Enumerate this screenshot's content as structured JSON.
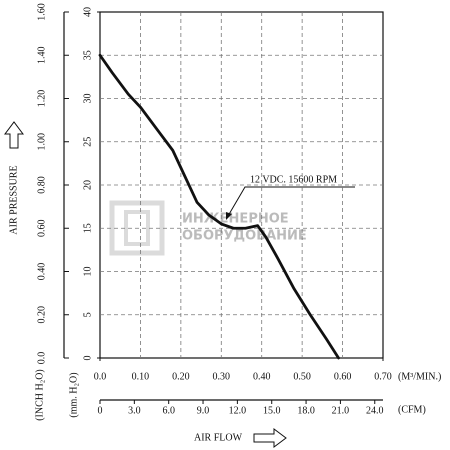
{
  "chart_data": {
    "type": "line",
    "y_label": "AIR PRESSURE",
    "y_unit_label": "(mm. H₂O)",
    "y2_unit_label": "(INCH H₂O)",
    "x_label": "AIR FLOW",
    "x_unit_label": "(M³/MIN.)",
    "x2_unit_label": "(CFM)",
    "watermark": [
      "ИНЖЕНЕРНОЕ",
      "ОБОРУДОВАНИЕ"
    ],
    "grid": true,
    "x": [
      0,
      0.03,
      0.07,
      0.1,
      0.14,
      0.18,
      0.21,
      0.24,
      0.27,
      0.3,
      0.33,
      0.36,
      0.39,
      0.41,
      0.44,
      0.48,
      0.52,
      0.56,
      0.59
    ],
    "series": [
      {
        "name": "12 VDC. 15600 RPM",
        "color": "#111111",
        "values": [
          35,
          33,
          30.5,
          29,
          26.5,
          24,
          21,
          18,
          16.5,
          15.5,
          15,
          15,
          15.3,
          14,
          11.5,
          8,
          5,
          2.2,
          0
        ]
      }
    ],
    "xlim": [
      0,
      0.7
    ],
    "xticks": [
      {
        "value": 0,
        "label": "0.0"
      },
      {
        "value": 0.1,
        "label": "0.10"
      },
      {
        "value": 0.2,
        "label": "0.20"
      },
      {
        "value": 0.3,
        "label": "0.30"
      },
      {
        "value": 0.4,
        "label": "0.40"
      },
      {
        "value": 0.5,
        "label": "0.50"
      },
      {
        "value": 0.6,
        "label": "0.60"
      },
      {
        "value": 0.7,
        "label": "0.70"
      }
    ],
    "x2lim": [
      0,
      24.72
    ],
    "x2ticks": [
      0,
      {
        "value": 3,
        "label": "3.0"
      },
      {
        "value": 6,
        "label": "6.0"
      },
      {
        "value": 9,
        "label": "9.0"
      },
      {
        "value": 12,
        "label": "12.0"
      },
      {
        "value": 15,
        "label": "15.0"
      },
      {
        "value": 18,
        "label": "18.0"
      },
      {
        "value": 21,
        "label": "21.0"
      },
      {
        "value": 24,
        "label": "24.0"
      }
    ],
    "ylim": [
      0,
      40
    ],
    "yticks": [
      0,
      5,
      10,
      15,
      20,
      25,
      30,
      35,
      40
    ],
    "y2lim": [
      0,
      1.6
    ],
    "y2ticks": [
      {
        "value": 0,
        "label": "0.0"
      },
      {
        "value": 0.2,
        "label": "0.20"
      },
      {
        "value": 0.4,
        "label": "0.40"
      },
      {
        "value": 0.6,
        "label": "0.60"
      },
      {
        "value": 0.8,
        "label": "0.80"
      },
      {
        "value": 1.0,
        "label": "1.00"
      },
      {
        "value": 1.2,
        "label": "1.20"
      },
      {
        "value": 1.4,
        "label": "1.40"
      },
      {
        "value": 1.6,
        "label": "1.60"
      }
    ]
  }
}
